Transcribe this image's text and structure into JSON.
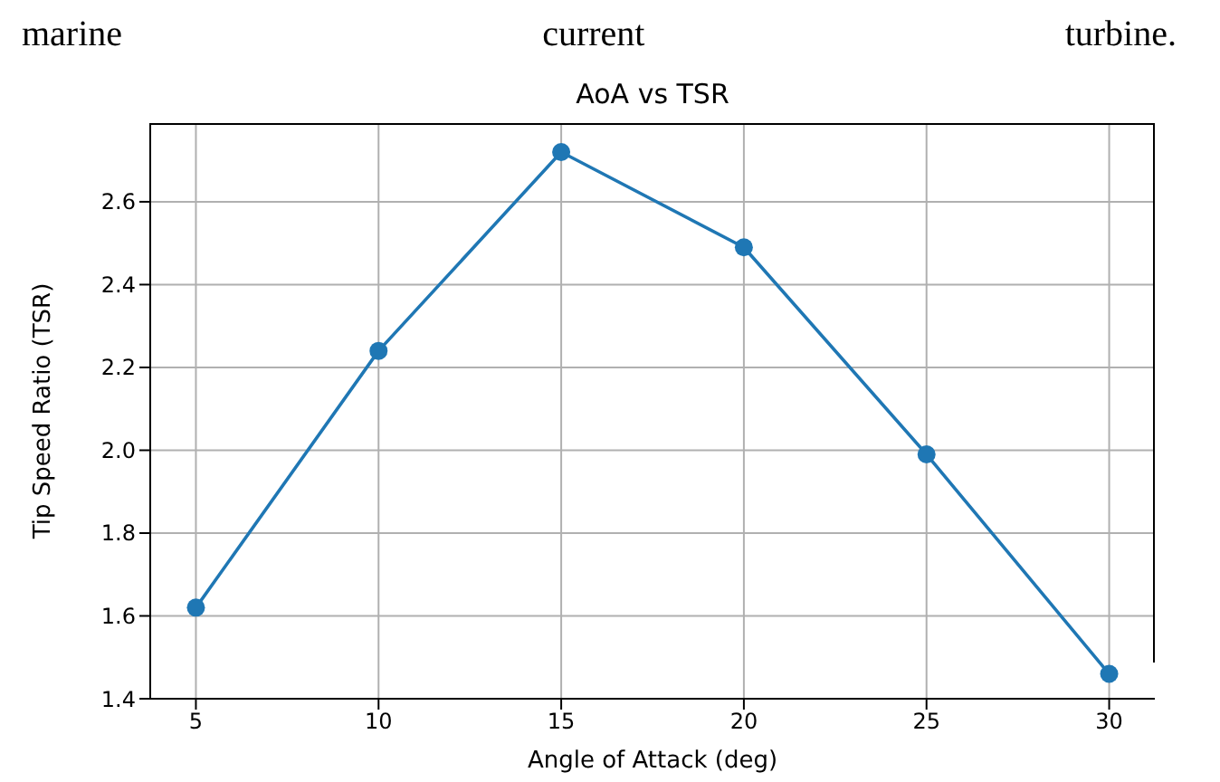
{
  "chart_data": {
    "type": "line",
    "title": "AoA vs TSR",
    "xlabel": "Angle of Attack (deg)",
    "ylabel": "Tip Speed Ratio (TSR)",
    "annotations": [
      "marine current turbine."
    ],
    "x": [
      5,
      10,
      15,
      20,
      25,
      30
    ],
    "series": [
      {
        "color": "#1f77b4",
        "values": [
          1.62,
          2.24,
          2.72,
          2.49,
          1.99,
          1.46
        ]
      }
    ],
    "xlim": [
      3.75,
      31.25
    ],
    "xticks": [
      5,
      10,
      15,
      20,
      25,
      30
    ],
    "ylim": [
      1.4,
      2.79
    ],
    "yticks": [
      {
        "value": 1.4,
        "label": "1.4"
      },
      {
        "value": 1.6,
        "label": "1.6"
      },
      {
        "value": 1.8,
        "label": "1.8"
      },
      {
        "value": 2.0,
        "label": "2.0"
      },
      {
        "value": 2.2,
        "label": "2.2"
      },
      {
        "value": 2.4,
        "label": "2.4"
      },
      {
        "value": 2.6,
        "label": "2.6"
      }
    ],
    "grid": true,
    "marker": "circle",
    "line_style": "solid",
    "legend": false
  }
}
